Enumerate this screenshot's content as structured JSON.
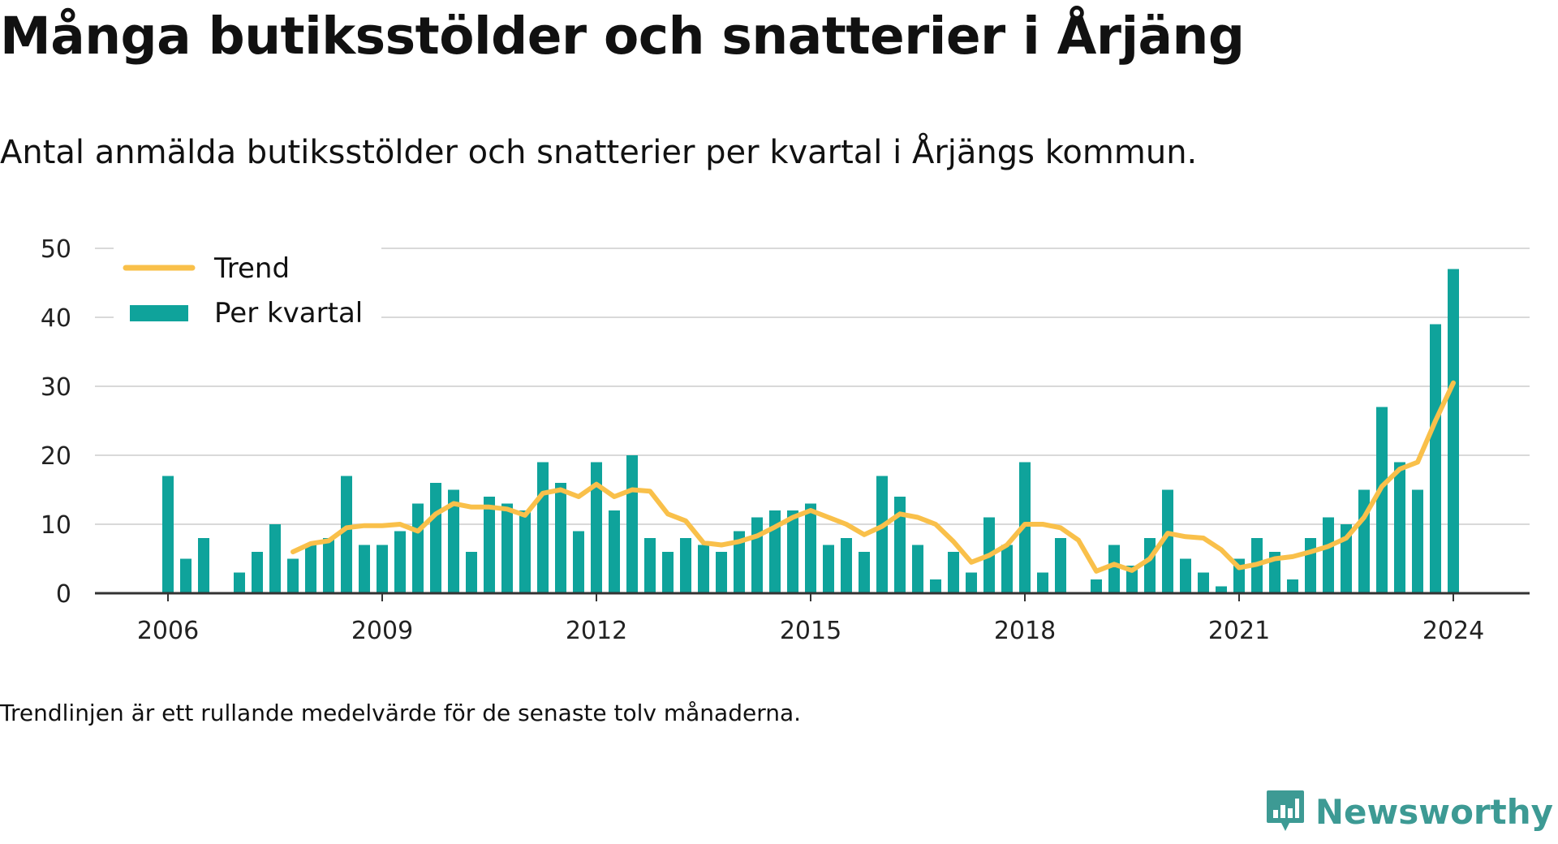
{
  "title": "Många butiksstölder och snatterier i Årjäng",
  "subtitle": "Antal anmälda butiksstölder och snatterier per kvartal i Årjängs kommun.",
  "footnote": "Trendlinjen är ett rullande medelvärde för de senaste tolv månaderna.",
  "brand": {
    "name": "Newsworthy",
    "icon": "newsworthy-logo-icon",
    "color": "#3d9a94"
  },
  "legend": {
    "trend_label": "Trend",
    "bars_label": "Per kvartal"
  },
  "colors": {
    "bars": "#0fa39b",
    "trend": "#f9c04a",
    "grid": "#d9d9d9",
    "axis": "#333333"
  },
  "chart_data": {
    "type": "bar",
    "x_ticks": [
      "2006",
      "2009",
      "2012",
      "2015",
      "2018",
      "2021",
      "2024"
    ],
    "y_ticks": [
      0,
      10,
      20,
      30,
      40,
      50
    ],
    "ylim": [
      0,
      50
    ],
    "grid": true,
    "legend_position": "top-left",
    "categories": [
      "2006 Q1",
      "2006 Q2",
      "2006 Q3",
      "2006 Q4",
      "2007 Q1",
      "2007 Q2",
      "2007 Q3",
      "2007 Q4",
      "2008 Q1",
      "2008 Q2",
      "2008 Q3",
      "2008 Q4",
      "2009 Q1",
      "2009 Q2",
      "2009 Q3",
      "2009 Q4",
      "2010 Q1",
      "2010 Q2",
      "2010 Q3",
      "2010 Q4",
      "2011 Q1",
      "2011 Q2",
      "2011 Q3",
      "2011 Q4",
      "2012 Q1",
      "2012 Q2",
      "2012 Q3",
      "2012 Q4",
      "2013 Q1",
      "2013 Q2",
      "2013 Q3",
      "2013 Q4",
      "2014 Q1",
      "2014 Q2",
      "2014 Q3",
      "2014 Q4",
      "2015 Q1",
      "2015 Q2",
      "2015 Q3",
      "2015 Q4",
      "2016 Q1",
      "2016 Q2",
      "2016 Q3",
      "2016 Q4",
      "2017 Q1",
      "2017 Q2",
      "2017 Q3",
      "2017 Q4",
      "2018 Q1",
      "2018 Q2",
      "2018 Q3",
      "2018 Q4",
      "2019 Q1",
      "2019 Q2",
      "2019 Q3",
      "2019 Q4",
      "2020 Q1",
      "2020 Q2",
      "2020 Q3",
      "2020 Q4",
      "2021 Q1",
      "2021 Q2",
      "2021 Q3",
      "2021 Q4",
      "2022 Q1",
      "2022 Q2",
      "2022 Q3",
      "2022 Q4",
      "2023 Q1",
      "2023 Q2",
      "2023 Q3",
      "2023 Q4",
      "2024 Q1"
    ],
    "series": [
      {
        "name": "Per kvartal",
        "type": "bar",
        "values": [
          17,
          5,
          8,
          0,
          3,
          6,
          10,
          5,
          7,
          8,
          17,
          7,
          7,
          9,
          13,
          16,
          15,
          6,
          14,
          13,
          12,
          19,
          16,
          9,
          19,
          12,
          20,
          8,
          6,
          8,
          7,
          6,
          9,
          11,
          12,
          12,
          13,
          7,
          8,
          6,
          17,
          14,
          7,
          2,
          6,
          3,
          11,
          7,
          19,
          3,
          8,
          0,
          2,
          7,
          4,
          8,
          15,
          5,
          3,
          1,
          5,
          8,
          6,
          2,
          8,
          11,
          10,
          15,
          27,
          19,
          15,
          39,
          47
        ]
      },
      {
        "name": "Trend",
        "type": "line",
        "values": [
          null,
          null,
          null,
          null,
          null,
          null,
          null,
          6,
          7.2,
          7.6,
          9.5,
          9.8,
          9.8,
          10,
          9,
          11.5,
          13,
          12.5,
          12.5,
          12.2,
          11.3,
          14.5,
          15,
          14,
          15.8,
          14,
          15,
          14.8,
          11.5,
          10.5,
          7.3,
          7,
          7.5,
          8.3,
          9.6,
          11,
          12,
          11,
          10,
          8.5,
          9.7,
          11.5,
          11,
          10,
          7.5,
          4.5,
          5.5,
          7,
          10,
          10,
          9.5,
          7.7,
          3.2,
          4.2,
          3.3,
          5,
          8.7,
          8.2,
          8,
          6.3,
          3.7,
          4.2,
          5,
          5.3,
          6,
          6.8,
          8,
          11,
          15.5,
          18,
          19,
          25,
          30.5
        ]
      }
    ]
  }
}
